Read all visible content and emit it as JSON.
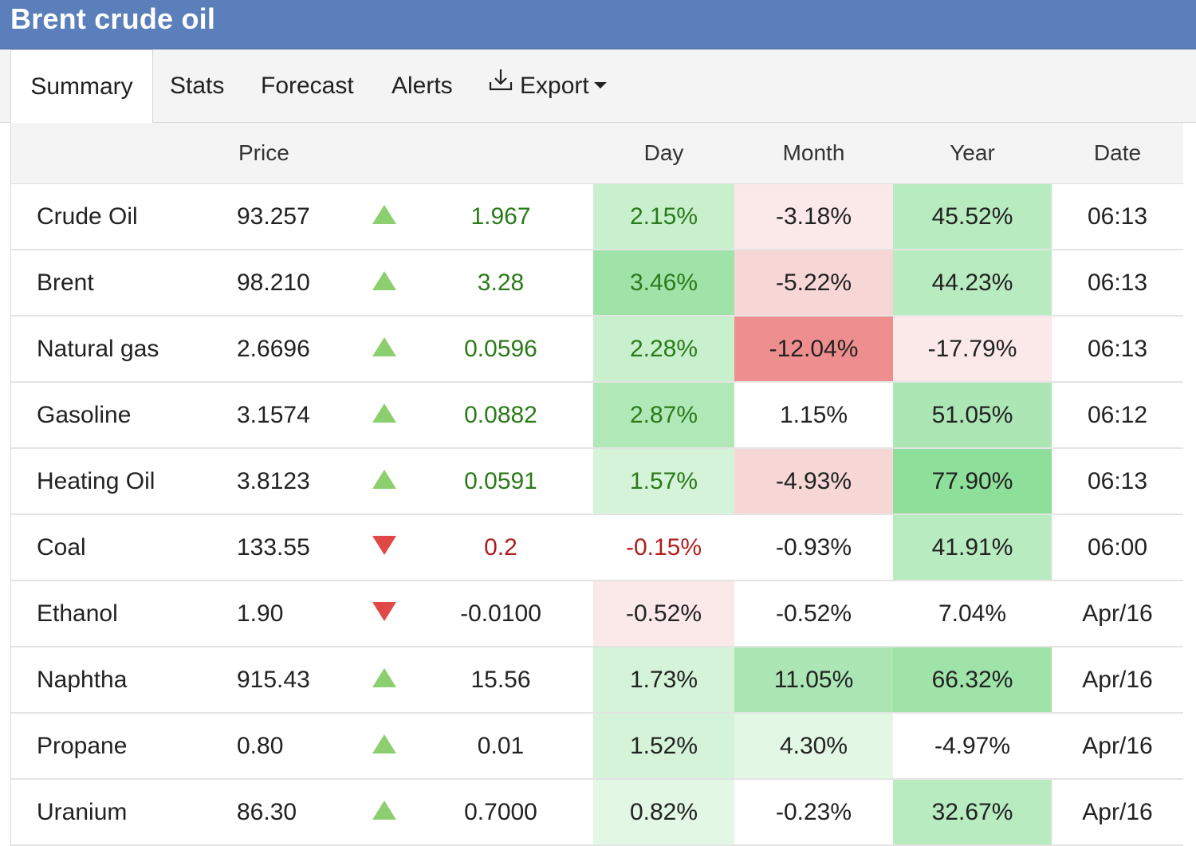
{
  "title": "Brent crude oil",
  "tabs": [
    "Summary",
    "Stats",
    "Forecast",
    "Alerts",
    "Export"
  ],
  "columns": {
    "name": "",
    "price": "Price",
    "dir": "",
    "change": "",
    "day": "Day",
    "month": "Month",
    "year": "Year",
    "date": "Date"
  },
  "rows": [
    {
      "name": "Crude Oil",
      "price": "93.257",
      "dir": "up",
      "change": "1.967",
      "change_color": "pos",
      "day": "2.15%",
      "day_bg": "#c8f0cd",
      "day_color": "pos",
      "month": "-3.18%",
      "month_bg": "#fbe8e8",
      "year": "45.52%",
      "year_bg": "#b8ebc0",
      "date": "06:13"
    },
    {
      "name": "Brent",
      "price": "98.210",
      "dir": "up",
      "change": "3.28",
      "change_color": "pos",
      "day": "3.46%",
      "day_bg": "#9fe3a8",
      "day_color": "pos",
      "month": "-5.22%",
      "month_bg": "#f7d6d6",
      "year": "44.23%",
      "year_bg": "#b8ebc0",
      "date": "06:13"
    },
    {
      "name": "Natural gas",
      "price": "2.6696",
      "dir": "up",
      "change": "0.0596",
      "change_color": "pos",
      "day": "2.28%",
      "day_bg": "#c8f0cd",
      "day_color": "pos",
      "month": "-12.04%",
      "month_bg": "#ee8e8e",
      "year": "-17.79%",
      "year_bg": "#fbe8e8",
      "date": "06:13"
    },
    {
      "name": "Gasoline",
      "price": "3.1574",
      "dir": "up",
      "change": "0.0882",
      "change_color": "pos",
      "day": "2.87%",
      "day_bg": "#b0e8b8",
      "day_color": "pos",
      "month": "1.15%",
      "month_bg": "#ffffff",
      "year": "51.05%",
      "year_bg": "#abe6b4",
      "date": "06:12"
    },
    {
      "name": "Heating Oil",
      "price": "3.8123",
      "dir": "up",
      "change": "0.0591",
      "change_color": "pos",
      "day": "1.57%",
      "day_bg": "#d4f3d8",
      "day_color": "pos",
      "month": "-4.93%",
      "month_bg": "#f7d6d6",
      "year": "77.90%",
      "year_bg": "#8ddf99",
      "date": "06:13"
    },
    {
      "name": "Coal",
      "price": "133.55",
      "dir": "down",
      "change": "0.2",
      "change_color": "neg",
      "day": "-0.15%",
      "day_bg": "#ffffff",
      "day_color": "neg",
      "month": "-0.93%",
      "month_bg": "#ffffff",
      "year": "41.91%",
      "year_bg": "#b8ebc0",
      "date": "06:00"
    },
    {
      "name": "Ethanol",
      "price": "1.90",
      "dir": "down",
      "change": "-0.0100",
      "change_color": "neu",
      "day": "-0.52%",
      "day_bg": "#fbe8e8",
      "day_color": "neu",
      "month": "-0.52%",
      "month_bg": "#ffffff",
      "year": "7.04%",
      "year_bg": "#ffffff",
      "date": "Apr/16"
    },
    {
      "name": "Naphtha",
      "price": "915.43",
      "dir": "up",
      "change": "15.56",
      "change_color": "neu",
      "day": "1.73%",
      "day_bg": "#d4f3d8",
      "day_color": "neu",
      "month": "11.05%",
      "month_bg": "#abe6b4",
      "year": "66.32%",
      "year_bg": "#9fe3a8",
      "date": "Apr/16"
    },
    {
      "name": "Propane",
      "price": "0.80",
      "dir": "up",
      "change": "0.01",
      "change_color": "neu",
      "day": "1.52%",
      "day_bg": "#d4f3d8",
      "day_color": "neu",
      "month": "4.30%",
      "month_bg": "#e2f7e4",
      "year": "-4.97%",
      "year_bg": "#ffffff",
      "date": "Apr/16"
    },
    {
      "name": "Uranium",
      "price": "86.30",
      "dir": "up",
      "change": "0.7000",
      "change_color": "neu",
      "day": "0.82%",
      "day_bg": "#e2f7e4",
      "day_color": "neu",
      "month": "-0.23%",
      "month_bg": "#ffffff",
      "year": "32.67%",
      "year_bg": "#b8ebc0",
      "date": "Apr/16"
    }
  ]
}
